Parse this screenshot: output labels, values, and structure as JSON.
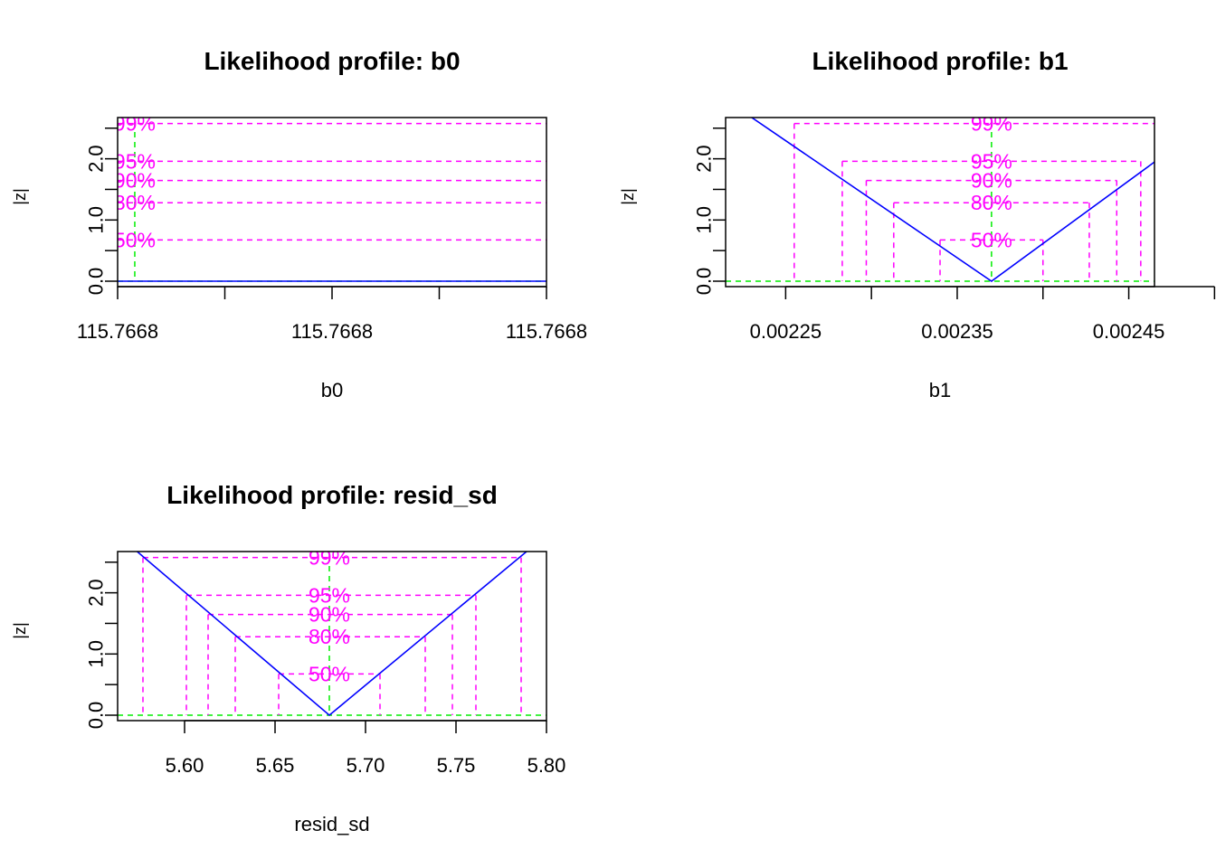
{
  "colors": {
    "profile_line": "#0000ff",
    "confidence": "#ff00ff",
    "estimate": "#00ee00",
    "axis": "#000000"
  },
  "chart_data": [
    {
      "type": "line",
      "title": "Likelihood profile: b0",
      "xlabel": "b0",
      "ylabel": "|z|",
      "xlim": [
        0,
        1
      ],
      "ylim": [
        0,
        2.6
      ],
      "x_ticks": [
        0.0,
        0.5,
        1.0
      ],
      "x_tick_labels": [
        "115.7668",
        "115.7668",
        "115.7668"
      ],
      "minor_ticks": [
        0.25,
        0.75
      ],
      "y_ticks": [
        0,
        0.5,
        1.0,
        1.5,
        2.0,
        2.5
      ],
      "y_tick_labels": [
        "0.0",
        "",
        "1.0",
        "",
        "2.0",
        ""
      ],
      "estimate": 0.04,
      "profile": {
        "x": [
          0,
          1
        ],
        "y": [
          0,
          0
        ]
      },
      "confidence_levels": [
        {
          "label": "99%",
          "z": 2.576,
          "lower": null,
          "upper": null
        },
        {
          "label": "95%",
          "z": 1.96,
          "lower": null,
          "upper": null
        },
        {
          "label": "90%",
          "z": 1.645,
          "lower": null,
          "upper": null
        },
        {
          "label": "80%",
          "z": 1.282,
          "lower": null,
          "upper": null
        },
        {
          "label": "50%",
          "z": 0.674,
          "lower": null,
          "upper": null
        }
      ],
      "grid": false
    },
    {
      "type": "line",
      "title": "Likelihood profile: b1",
      "xlabel": "b1",
      "ylabel": "|z|",
      "xlim": [
        0.002215,
        0.002465
      ],
      "ylim": [
        0,
        2.6
      ],
      "x_ticks": [
        0.00225,
        0.0023,
        0.00235,
        0.0024,
        0.00245,
        0.0025
      ],
      "x_tick_labels": [
        "0.00225",
        "",
        "0.00235",
        "",
        "0.00245",
        ""
      ],
      "y_ticks": [
        0,
        0.5,
        1.0,
        1.5,
        2.0,
        2.5
      ],
      "y_tick_labels": [
        "0.0",
        "",
        "1.0",
        "",
        "2.0",
        ""
      ],
      "estimate": 0.00237,
      "profile": {
        "x": [
          0.00222,
          0.00237,
          0.00251
        ],
        "y": [
          2.87,
          0,
          2.87
        ]
      },
      "confidence_levels": [
        {
          "label": "99%",
          "z": 2.576,
          "lower": 0.002255,
          "upper": 0.002485
        },
        {
          "label": "95%",
          "z": 1.96,
          "lower": 0.002283,
          "upper": 0.002457
        },
        {
          "label": "90%",
          "z": 1.645,
          "lower": 0.002297,
          "upper": 0.002443
        },
        {
          "label": "80%",
          "z": 1.282,
          "lower": 0.002313,
          "upper": 0.002427
        },
        {
          "label": "50%",
          "z": 0.674,
          "lower": 0.00234,
          "upper": 0.0024
        }
      ],
      "grid": false
    },
    {
      "type": "line",
      "title": "Likelihood profile: resid_sd",
      "xlabel": "resid_sd",
      "ylabel": "|z|",
      "xlim": [
        5.563,
        5.8
      ],
      "ylim": [
        0,
        2.6
      ],
      "x_ticks": [
        5.6,
        5.65,
        5.7,
        5.75,
        5.8
      ],
      "x_tick_labels": [
        "5.60",
        "5.65",
        "5.70",
        "5.75",
        "5.80"
      ],
      "y_ticks": [
        0,
        0.5,
        1.0,
        1.5,
        2.0,
        2.5
      ],
      "y_tick_labels": [
        "0.0",
        "",
        "1.0",
        "",
        "2.0",
        ""
      ],
      "estimate": 5.68,
      "profile": {
        "x": [
          5.566,
          5.68,
          5.797
        ],
        "y": [
          2.87,
          0,
          2.87
        ]
      },
      "confidence_levels": [
        {
          "label": "99%",
          "z": 2.576,
          "lower": 5.577,
          "upper": 5.786
        },
        {
          "label": "95%",
          "z": 1.96,
          "lower": 5.601,
          "upper": 5.761
        },
        {
          "label": "90%",
          "z": 1.645,
          "lower": 5.613,
          "upper": 5.748
        },
        {
          "label": "80%",
          "z": 1.282,
          "lower": 5.628,
          "upper": 5.733
        },
        {
          "label": "50%",
          "z": 0.674,
          "lower": 5.652,
          "upper": 5.708
        }
      ],
      "grid": false
    }
  ]
}
